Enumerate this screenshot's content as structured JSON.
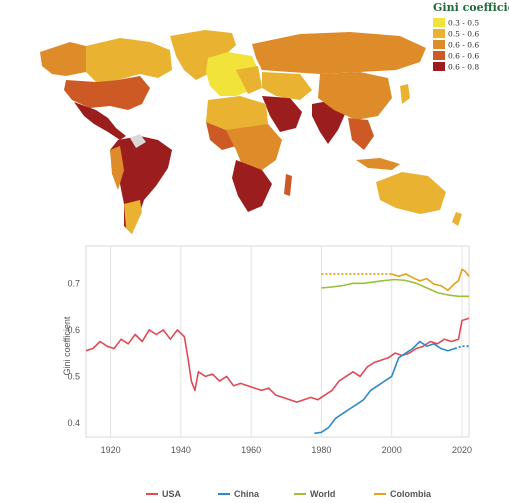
{
  "chart_data": [
    {
      "type": "choropleth-map",
      "title": "",
      "legend": {
        "title": "Gini coefficient",
        "placement": "top-right",
        "entries": [
          {
            "label": "0.3 - 0.5",
            "color": "#f2e33a"
          },
          {
            "label": "0.5 - 0.6",
            "color": "#e9b230"
          },
          {
            "label": "0.6 - 0.6",
            "color": "#de8c2a"
          },
          {
            "label": "0.6 - 0.6",
            "color": "#cd5a24"
          },
          {
            "label": "0.6 - 0.8",
            "color": "#9c1d1d"
          }
        ]
      },
      "no_data_color": "#d9d9d9"
    },
    {
      "type": "line",
      "title": "",
      "xlabel": "",
      "ylabel": "Gini coefficient",
      "xlim": [
        1913,
        2022
      ],
      "ylim": [
        0.37,
        0.78
      ],
      "xticks": [
        1920,
        1940,
        1960,
        1980,
        2000,
        2020
      ],
      "yticks": [
        0.4,
        0.5,
        0.6,
        0.7
      ],
      "grid": "vertical",
      "legend": "bottom",
      "series": [
        {
          "name": "USA",
          "color": "#e04a55",
          "x": [
            1913,
            1915,
            1917,
            1919,
            1921,
            1923,
            1925,
            1927,
            1929,
            1931,
            1933,
            1935,
            1937,
            1939,
            1941,
            1942,
            1943,
            1944,
            1945,
            1947,
            1949,
            1951,
            1953,
            1955,
            1957,
            1959,
            1961,
            1963,
            1965,
            1967,
            1969,
            1971,
            1973,
            1975,
            1977,
            1979,
            1981,
            1983,
            1985,
            1987,
            1989,
            1991,
            1993,
            1995,
            1997,
            1999,
            2001,
            2003,
            2005,
            2007,
            2009,
            2011,
            2013,
            2015,
            2017,
            2019,
            2020,
            2022
          ],
          "y": [
            0.555,
            0.56,
            0.575,
            0.565,
            0.56,
            0.58,
            0.57,
            0.59,
            0.575,
            0.6,
            0.59,
            0.6,
            0.58,
            0.6,
            0.585,
            0.54,
            0.49,
            0.47,
            0.51,
            0.5,
            0.505,
            0.49,
            0.5,
            0.48,
            0.485,
            0.48,
            0.475,
            0.47,
            0.475,
            0.46,
            0.455,
            0.45,
            0.445,
            0.45,
            0.455,
            0.45,
            0.46,
            0.47,
            0.49,
            0.5,
            0.51,
            0.5,
            0.52,
            0.53,
            0.535,
            0.54,
            0.55,
            0.545,
            0.55,
            0.56,
            0.565,
            0.575,
            0.57,
            0.58,
            0.575,
            0.58,
            0.62,
            0.625
          ]
        },
        {
          "name": "China",
          "color": "#2e8ac8",
          "x": [
            1978,
            1980,
            1982,
            1984,
            1986,
            1988,
            1990,
            1992,
            1994,
            1996,
            1998,
            2000,
            2002,
            2004,
            2006,
            2008,
            2010,
            2012,
            2014,
            2016,
            2018
          ],
          "y": [
            0.378,
            0.38,
            0.39,
            0.41,
            0.42,
            0.43,
            0.44,
            0.45,
            0.47,
            0.48,
            0.49,
            0.5,
            0.54,
            0.55,
            0.56,
            0.575,
            0.565,
            0.57,
            0.56,
            0.555,
            0.56
          ],
          "projected": {
            "x": [
              2018,
              2020,
              2022
            ],
            "y": [
              0.56,
              0.565,
              0.565
            ]
          }
        },
        {
          "name": "World",
          "color": "#9cbf3b",
          "x": [
            1980,
            1983,
            1986,
            1989,
            1992,
            1995,
            1998,
            2001,
            2004,
            2007,
            2010,
            2013,
            2016,
            2019,
            2022
          ],
          "y": [
            0.69,
            0.692,
            0.695,
            0.7,
            0.7,
            0.703,
            0.706,
            0.708,
            0.706,
            0.7,
            0.69,
            0.68,
            0.675,
            0.672,
            0.672
          ]
        },
        {
          "name": "Colombia",
          "color": "#e2a21b",
          "x": [
            2000,
            2002,
            2004,
            2006,
            2008,
            2010,
            2012,
            2014,
            2016,
            2018,
            2019,
            2020,
            2021,
            2022
          ],
          "y": [
            0.72,
            0.715,
            0.72,
            0.712,
            0.705,
            0.71,
            0.698,
            0.695,
            0.685,
            0.7,
            0.705,
            0.73,
            0.725,
            0.715
          ],
          "projected": {
            "x": [
              1980,
              2000
            ],
            "y": [
              0.72,
              0.72
            ]
          }
        }
      ]
    }
  ]
}
